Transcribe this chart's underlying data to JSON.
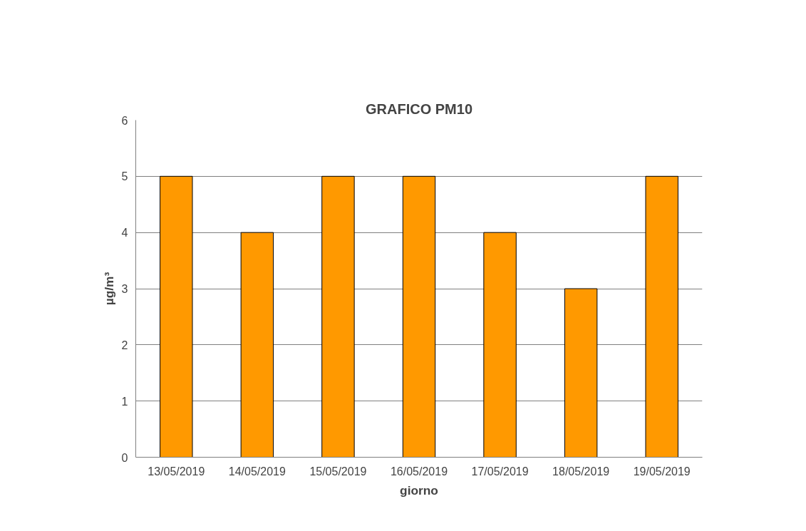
{
  "chart_data": {
    "type": "bar",
    "title": "GRAFICO PM10",
    "xlabel": "giorno",
    "ylabel": "µg/m³",
    "categories": [
      "13/05/2019",
      "14/05/2019",
      "15/05/2019",
      "16/05/2019",
      "17/05/2019",
      "18/05/2019",
      "19/05/2019"
    ],
    "values": [
      5,
      4,
      5,
      5,
      4,
      3,
      5
    ],
    "color": "#ff9900",
    "ylim": [
      0,
      6
    ],
    "yticks": [
      0,
      1,
      2,
      3,
      4,
      5,
      6
    ],
    "grid": "y"
  }
}
